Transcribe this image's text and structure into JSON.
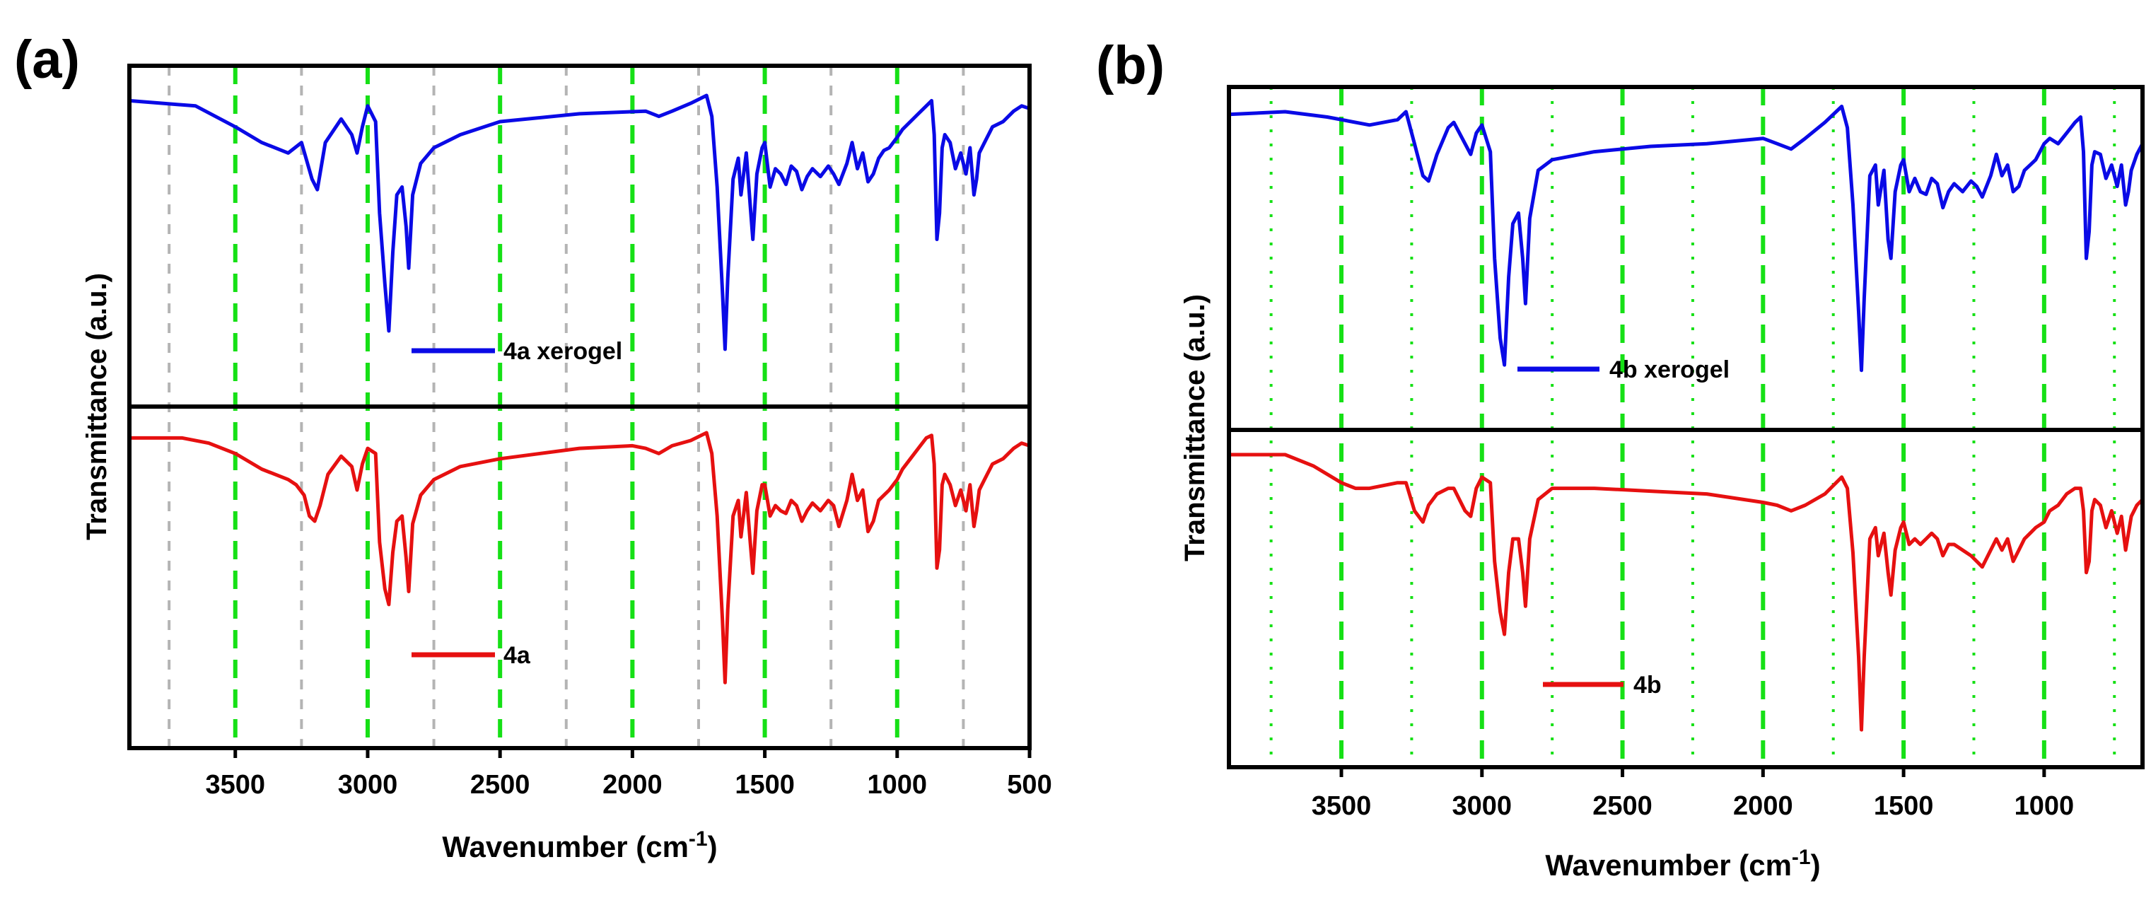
{
  "chart_data": [
    {
      "type": "line",
      "panel_label": "(a)",
      "xlabel": "Wavenumber (cm",
      "xlabel_sup": "-1",
      "xlabel_close": ")",
      "ylabel": "Transmittance (a.u.)",
      "xlim": [
        3900,
        500
      ],
      "x_reversed": true,
      "ticks": [
        "3500",
        "3000",
        "2500",
        "2000",
        "1500",
        "1000",
        "500"
      ],
      "major_gridlines": [
        3500,
        3000,
        2500,
        2000,
        1500,
        1000
      ],
      "minor_gridlines": [
        3750,
        3250,
        2750,
        2250,
        1750,
        1250,
        750
      ],
      "series": [
        {
          "name": "4a xerogel",
          "color": "#0a0ae6",
          "x": [
            3900,
            3650,
            3500,
            3400,
            3300,
            3250,
            3210,
            3190,
            3160,
            3100,
            3060,
            3040,
            3020,
            3000,
            2970,
            2955,
            2935,
            2920,
            2905,
            2890,
            2870,
            2855,
            2845,
            2830,
            2800,
            2750,
            2650,
            2500,
            2200,
            1950,
            1900,
            1850,
            1780,
            1720,
            1700,
            1680,
            1660,
            1650,
            1640,
            1620,
            1600,
            1590,
            1570,
            1555,
            1545,
            1530,
            1510,
            1500,
            1480,
            1460,
            1440,
            1420,
            1400,
            1380,
            1360,
            1340,
            1320,
            1290,
            1260,
            1240,
            1220,
            1190,
            1170,
            1150,
            1130,
            1110,
            1090,
            1070,
            1050,
            1030,
            1000,
            980,
            950,
            920,
            890,
            870,
            860,
            850,
            840,
            830,
            820,
            800,
            780,
            760,
            740,
            725,
            710,
            700,
            690,
            670,
            640,
            600,
            560,
            530,
            500
          ],
          "y": [
            0.02,
            0.04,
            0.12,
            0.18,
            0.22,
            0.18,
            0.32,
            0.36,
            0.18,
            0.09,
            0.15,
            0.22,
            0.12,
            0.04,
            0.1,
            0.45,
            0.72,
            0.9,
            0.6,
            0.38,
            0.35,
            0.5,
            0.66,
            0.38,
            0.26,
            0.2,
            0.15,
            0.1,
            0.07,
            0.06,
            0.08,
            0.06,
            0.03,
            0.0,
            0.08,
            0.35,
            0.75,
            0.97,
            0.7,
            0.32,
            0.24,
            0.38,
            0.22,
            0.42,
            0.55,
            0.3,
            0.2,
            0.18,
            0.35,
            0.28,
            0.3,
            0.34,
            0.27,
            0.29,
            0.36,
            0.31,
            0.28,
            0.31,
            0.27,
            0.3,
            0.34,
            0.26,
            0.18,
            0.28,
            0.22,
            0.33,
            0.3,
            0.24,
            0.21,
            0.2,
            0.16,
            0.13,
            0.1,
            0.07,
            0.04,
            0.02,
            0.15,
            0.55,
            0.45,
            0.2,
            0.15,
            0.18,
            0.28,
            0.22,
            0.3,
            0.2,
            0.38,
            0.32,
            0.22,
            0.18,
            0.12,
            0.1,
            0.06,
            0.04,
            0.05
          ]
        },
        {
          "name": "4a",
          "color": "#e61010",
          "x": [
            3900,
            3700,
            3600,
            3500,
            3400,
            3300,
            3270,
            3240,
            3220,
            3200,
            3180,
            3150,
            3100,
            3060,
            3040,
            3020,
            3000,
            2970,
            2955,
            2935,
            2920,
            2905,
            2890,
            2870,
            2855,
            2845,
            2830,
            2800,
            2750,
            2650,
            2500,
            2200,
            2000,
            1950,
            1900,
            1850,
            1780,
            1720,
            1700,
            1680,
            1660,
            1650,
            1640,
            1620,
            1600,
            1590,
            1570,
            1555,
            1545,
            1530,
            1510,
            1500,
            1480,
            1460,
            1440,
            1420,
            1400,
            1380,
            1360,
            1340,
            1320,
            1290,
            1260,
            1240,
            1220,
            1190,
            1170,
            1150,
            1130,
            1110,
            1090,
            1070,
            1050,
            1030,
            1000,
            980,
            950,
            920,
            890,
            870,
            860,
            850,
            840,
            830,
            820,
            800,
            780,
            760,
            740,
            725,
            710,
            700,
            690,
            670,
            640,
            600,
            560,
            530,
            500
          ],
          "y": [
            0.02,
            0.02,
            0.04,
            0.08,
            0.14,
            0.18,
            0.2,
            0.24,
            0.32,
            0.34,
            0.28,
            0.16,
            0.09,
            0.13,
            0.22,
            0.12,
            0.06,
            0.08,
            0.42,
            0.6,
            0.66,
            0.46,
            0.34,
            0.32,
            0.48,
            0.61,
            0.35,
            0.24,
            0.18,
            0.13,
            0.1,
            0.06,
            0.05,
            0.06,
            0.08,
            0.05,
            0.03,
            0.0,
            0.08,
            0.32,
            0.72,
            0.96,
            0.68,
            0.32,
            0.26,
            0.4,
            0.23,
            0.42,
            0.54,
            0.3,
            0.2,
            0.2,
            0.32,
            0.28,
            0.3,
            0.31,
            0.26,
            0.28,
            0.34,
            0.3,
            0.27,
            0.3,
            0.26,
            0.28,
            0.36,
            0.26,
            0.16,
            0.26,
            0.22,
            0.38,
            0.34,
            0.26,
            0.24,
            0.22,
            0.18,
            0.14,
            0.1,
            0.06,
            0.02,
            0.01,
            0.12,
            0.52,
            0.45,
            0.2,
            0.16,
            0.2,
            0.28,
            0.22,
            0.3,
            0.2,
            0.36,
            0.3,
            0.22,
            0.18,
            0.12,
            0.1,
            0.06,
            0.04,
            0.05
          ]
        }
      ]
    },
    {
      "type": "line",
      "panel_label": "(b)",
      "xlabel": "Wavenumber (cm",
      "xlabel_sup": "-1",
      "xlabel_close": ")",
      "ylabel": "Transmittance (a.u.)",
      "xlim": [
        3900,
        650
      ],
      "x_reversed": true,
      "ticks": [
        "3500",
        "3000",
        "2500",
        "2000",
        "1500",
        "1000"
      ],
      "major_gridlines": [
        3500,
        3000,
        2500,
        2000,
        1500,
        1000
      ],
      "minor_gridlines": [
        3750,
        3250,
        2750,
        2250,
        1750,
        1250,
        750
      ],
      "series": [
        {
          "name": "4b xerogel",
          "color": "#0a0ae6",
          "x": [
            3900,
            3700,
            3550,
            3400,
            3300,
            3270,
            3240,
            3210,
            3190,
            3160,
            3120,
            3100,
            3060,
            3040,
            3020,
            3000,
            2970,
            2955,
            2935,
            2920,
            2905,
            2890,
            2870,
            2855,
            2845,
            2830,
            2800,
            2750,
            2600,
            2400,
            2200,
            2000,
            1950,
            1900,
            1850,
            1780,
            1720,
            1700,
            1680,
            1660,
            1650,
            1640,
            1620,
            1600,
            1590,
            1570,
            1555,
            1545,
            1530,
            1510,
            1500,
            1480,
            1460,
            1440,
            1420,
            1400,
            1380,
            1360,
            1340,
            1320,
            1290,
            1260,
            1240,
            1220,
            1190,
            1170,
            1150,
            1130,
            1110,
            1090,
            1070,
            1050,
            1030,
            1000,
            980,
            950,
            920,
            890,
            870,
            860,
            850,
            840,
            830,
            820,
            800,
            780,
            760,
            740,
            725,
            710,
            700,
            690,
            670,
            650
          ],
          "y": [
            0.01,
            0.0,
            0.02,
            0.05,
            0.03,
            0.0,
            0.12,
            0.24,
            0.26,
            0.16,
            0.06,
            0.04,
            0.12,
            0.16,
            0.08,
            0.05,
            0.15,
            0.55,
            0.85,
            0.95,
            0.62,
            0.42,
            0.38,
            0.55,
            0.72,
            0.4,
            0.22,
            0.18,
            0.15,
            0.13,
            0.12,
            0.1,
            0.12,
            0.14,
            0.1,
            0.04,
            -0.02,
            0.06,
            0.35,
            0.75,
            0.97,
            0.7,
            0.24,
            0.2,
            0.35,
            0.22,
            0.48,
            0.55,
            0.3,
            0.2,
            0.18,
            0.3,
            0.25,
            0.3,
            0.31,
            0.25,
            0.27,
            0.36,
            0.3,
            0.27,
            0.3,
            0.26,
            0.28,
            0.32,
            0.24,
            0.16,
            0.24,
            0.2,
            0.3,
            0.28,
            0.22,
            0.2,
            0.18,
            0.12,
            0.1,
            0.12,
            0.08,
            0.04,
            0.02,
            0.15,
            0.55,
            0.45,
            0.2,
            0.15,
            0.16,
            0.25,
            0.2,
            0.28,
            0.2,
            0.35,
            0.3,
            0.22,
            0.16,
            0.12
          ]
        },
        {
          "name": "4b",
          "color": "#e61010",
          "x": [
            3900,
            3700,
            3600,
            3500,
            3450,
            3400,
            3300,
            3270,
            3240,
            3210,
            3190,
            3160,
            3120,
            3100,
            3060,
            3040,
            3020,
            3000,
            2970,
            2955,
            2935,
            2920,
            2905,
            2890,
            2870,
            2855,
            2845,
            2830,
            2800,
            2750,
            2600,
            2400,
            2200,
            2000,
            1950,
            1900,
            1850,
            1780,
            1720,
            1700,
            1680,
            1660,
            1650,
            1640,
            1620,
            1600,
            1590,
            1570,
            1555,
            1545,
            1530,
            1510,
            1500,
            1480,
            1460,
            1440,
            1420,
            1400,
            1380,
            1360,
            1340,
            1320,
            1290,
            1260,
            1240,
            1220,
            1190,
            1170,
            1150,
            1130,
            1110,
            1090,
            1070,
            1050,
            1030,
            1000,
            980,
            950,
            920,
            890,
            870,
            860,
            850,
            840,
            830,
            820,
            800,
            780,
            760,
            740,
            725,
            710,
            700,
            690,
            670,
            650
          ],
          "y": [
            0.0,
            0.0,
            0.04,
            0.1,
            0.12,
            0.12,
            0.1,
            0.1,
            0.2,
            0.24,
            0.18,
            0.14,
            0.12,
            0.12,
            0.2,
            0.22,
            0.12,
            0.08,
            0.1,
            0.38,
            0.56,
            0.64,
            0.42,
            0.3,
            0.3,
            0.42,
            0.54,
            0.3,
            0.16,
            0.12,
            0.12,
            0.13,
            0.14,
            0.17,
            0.18,
            0.2,
            0.18,
            0.14,
            0.08,
            0.12,
            0.35,
            0.72,
            0.98,
            0.72,
            0.3,
            0.26,
            0.36,
            0.28,
            0.42,
            0.5,
            0.34,
            0.26,
            0.24,
            0.32,
            0.3,
            0.32,
            0.3,
            0.28,
            0.3,
            0.36,
            0.32,
            0.32,
            0.34,
            0.36,
            0.38,
            0.4,
            0.34,
            0.3,
            0.34,
            0.3,
            0.38,
            0.34,
            0.3,
            0.28,
            0.26,
            0.24,
            0.2,
            0.18,
            0.14,
            0.12,
            0.12,
            0.2,
            0.42,
            0.38,
            0.2,
            0.16,
            0.18,
            0.26,
            0.2,
            0.28,
            0.22,
            0.34,
            0.28,
            0.22,
            0.18,
            0.16
          ]
        }
      ]
    }
  ]
}
